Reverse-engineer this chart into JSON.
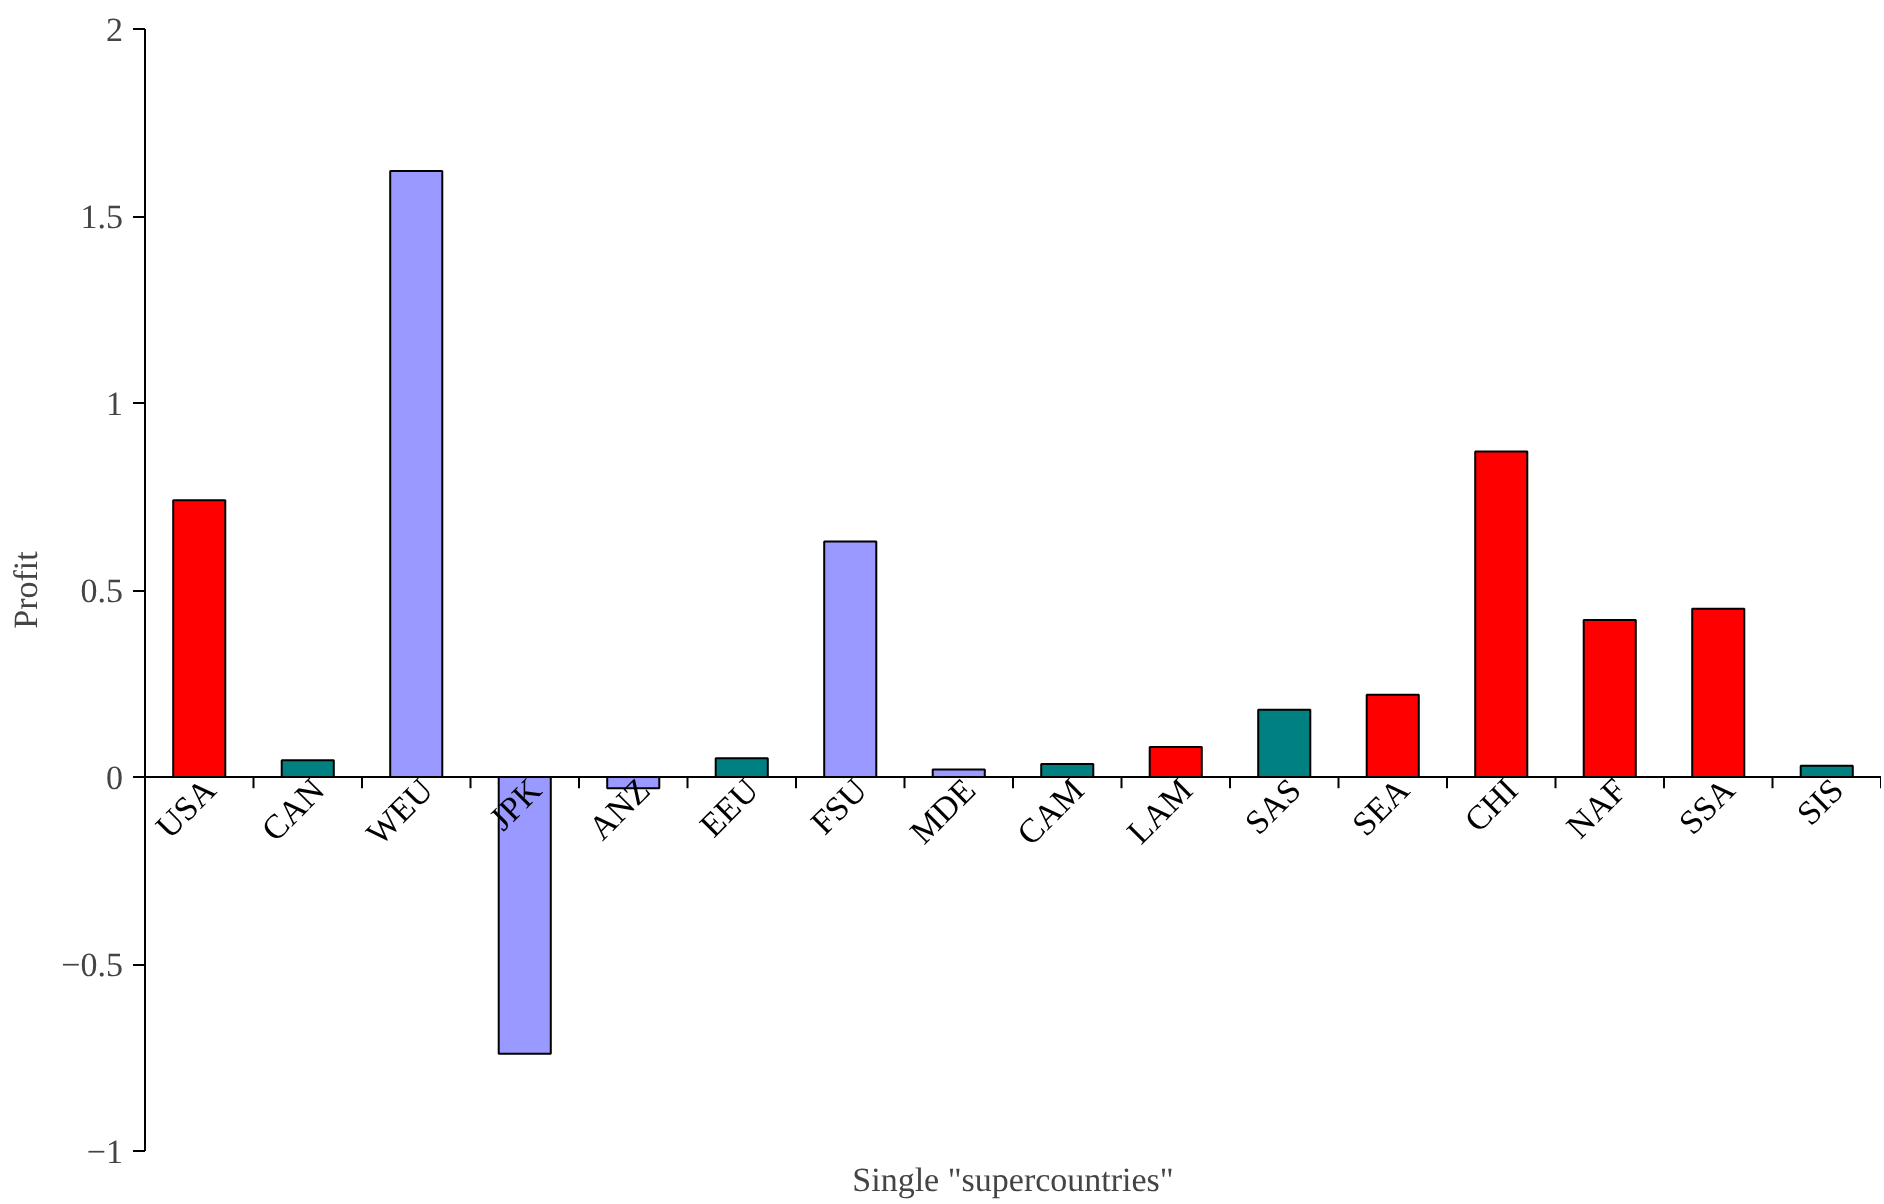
{
  "chart_data": {
    "type": "bar",
    "xlabel": "Single \"supercountries\"",
    "ylabel": "Profit",
    "categories": [
      "USA",
      "CAN",
      "WEU",
      "JPK",
      "ANZ",
      "EEU",
      "FSU",
      "MDE",
      "CAM",
      "LAM",
      "SAS",
      "SEA",
      "CHI",
      "NAF",
      "SSA",
      "SIS"
    ],
    "values": [
      0.74,
      0.045,
      1.62,
      -0.74,
      -0.03,
      0.05,
      0.63,
      0.02,
      0.035,
      0.08,
      0.18,
      0.22,
      0.87,
      0.42,
      0.45,
      0.03
    ],
    "colors": [
      "#ff0000",
      "#008080",
      "#9999ff",
      "#9999ff",
      "#9999ff",
      "#008080",
      "#9999ff",
      "#9999ff",
      "#008080",
      "#ff0000",
      "#008080",
      "#ff0000",
      "#ff0000",
      "#ff0000",
      "#ff0000",
      "#008080"
    ],
    "ylim": [
      -1,
      2
    ],
    "yticks": [
      -1,
      -0.5,
      0,
      0.5,
      1,
      1.5,
      2
    ],
    "grid": false
  }
}
